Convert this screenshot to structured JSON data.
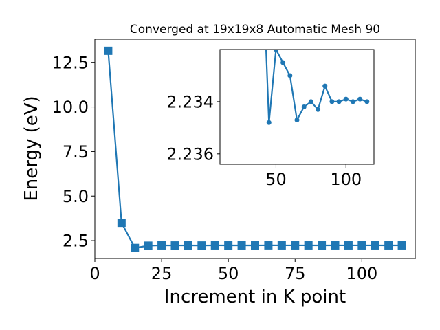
{
  "title": "Converged at 19x19x8 Automatic Mesh 90",
  "colors": {
    "series": "#1f77b4",
    "axes": "#000000",
    "background": "#ffffff"
  },
  "chart_data": [
    {
      "type": "line",
      "title": "Converged at 19x19x8 Automatic Mesh 90",
      "xlabel": "Increment in K point",
      "ylabel": "Energy (eV)",
      "xlim": [
        0,
        120
      ],
      "ylim": [
        1.5,
        13.8
      ],
      "xticks": [
        0,
        25,
        50,
        75,
        100
      ],
      "xtick_labels": [
        "0",
        "25",
        "50",
        "75",
        "100"
      ],
      "yticks": [
        2.5,
        5.0,
        7.5,
        10.0,
        12.5
      ],
      "ytick_labels": [
        "2.5",
        "5.0",
        "7.5",
        "10.0",
        "12.5"
      ],
      "marker": "square",
      "grid": false,
      "x": [
        5,
        10,
        15,
        20,
        25,
        30,
        35,
        40,
        45,
        50,
        55,
        60,
        65,
        70,
        75,
        80,
        85,
        90,
        95,
        100,
        105,
        110,
        115
      ],
      "y": [
        13.15,
        3.5,
        2.09,
        2.218,
        2.234,
        2.23,
        2.233,
        2.228,
        2.234,
        2.232,
        2.2335,
        2.233,
        2.2363,
        2.2343,
        2.234,
        2.2345,
        2.233,
        2.234,
        2.2341,
        2.234,
        2.2341,
        2.2339,
        2.2341
      ]
    },
    {
      "type": "line",
      "title": "",
      "xlabel": "",
      "ylabel": "",
      "inset": true,
      "y_inverted": true,
      "xlim": [
        10,
        120
      ],
      "ylim": [
        2.232,
        2.2364
      ],
      "xticks": [
        50,
        100
      ],
      "xtick_labels": [
        "50",
        "100"
      ],
      "yticks": [
        2.234,
        2.236
      ],
      "ytick_labels": [
        "2.234",
        "2.236"
      ],
      "marker": "circle",
      "grid": false,
      "x": [
        40,
        45,
        50,
        55,
        60,
        65,
        70,
        75,
        80,
        85,
        90,
        95,
        100,
        105,
        110,
        115
      ],
      "y": [
        2.228,
        2.2348,
        2.232,
        2.2325,
        2.233,
        2.2347,
        2.2342,
        2.234,
        2.2343,
        2.2334,
        2.234,
        2.234,
        2.2339,
        2.234,
        2.2339,
        2.234
      ]
    }
  ]
}
